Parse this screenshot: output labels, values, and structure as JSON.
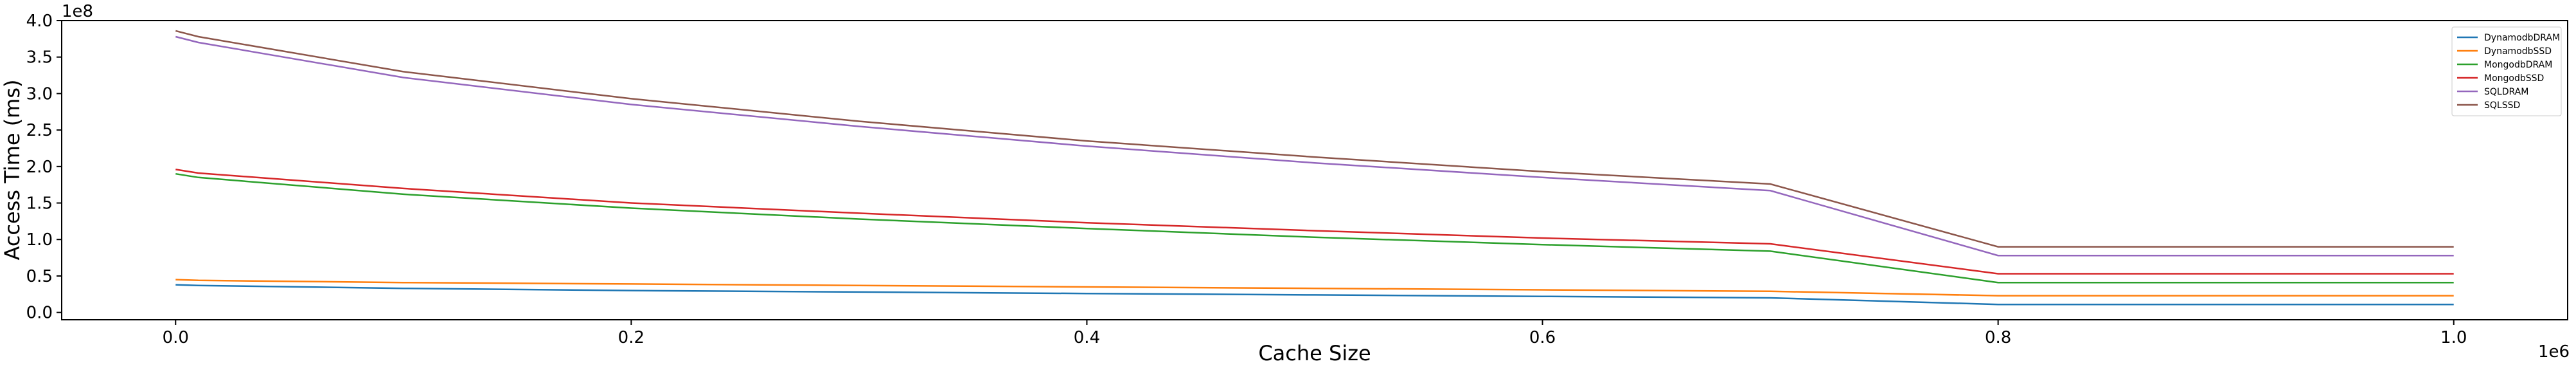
{
  "chart_data": {
    "type": "line",
    "title": "",
    "xlabel": "Cache Size",
    "ylabel": "Access Time (ms)",
    "x_offset_label": "1e6",
    "y_offset_label": "1e8",
    "xlim": [
      -0.05,
      1.05
    ],
    "ylim": [
      -0.1,
      4.0
    ],
    "xticks": [
      0.0,
      0.2,
      0.4,
      0.6,
      0.8,
      1.0
    ],
    "xtick_labels": [
      "0.0",
      "0.2",
      "0.4",
      "0.6",
      "0.8",
      "1.0"
    ],
    "yticks": [
      0.0,
      0.5,
      1.0,
      1.5,
      2.0,
      2.5,
      3.0,
      3.5,
      4.0
    ],
    "ytick_labels": [
      "0.0",
      "0.5",
      "1.0",
      "1.5",
      "2.0",
      "2.5",
      "3.0",
      "3.5",
      "4.0"
    ],
    "x": [
      0.0,
      0.01,
      0.1,
      0.2,
      0.3,
      0.4,
      0.5,
      0.6,
      0.7,
      0.8,
      0.9,
      1.0
    ],
    "series": [
      {
        "name": "DynamodbDRAM",
        "color": "#1f77b4",
        "values": [
          0.38,
          0.37,
          0.33,
          0.3,
          0.28,
          0.26,
          0.24,
          0.22,
          0.2,
          0.11,
          0.11,
          0.11
        ]
      },
      {
        "name": "DynamodbSSD",
        "color": "#ff7f0e",
        "values": [
          0.45,
          0.44,
          0.41,
          0.39,
          0.37,
          0.35,
          0.33,
          0.31,
          0.29,
          0.23,
          0.23,
          0.23
        ]
      },
      {
        "name": "MongodbDRAM",
        "color": "#2ca02c",
        "values": [
          1.9,
          1.85,
          1.62,
          1.43,
          1.28,
          1.15,
          1.03,
          0.93,
          0.84,
          0.41,
          0.41,
          0.41
        ]
      },
      {
        "name": "MongodbSSD",
        "color": "#d62728",
        "values": [
          1.96,
          1.91,
          1.7,
          1.5,
          1.36,
          1.23,
          1.12,
          1.02,
          0.94,
          0.53,
          0.53,
          0.53
        ]
      },
      {
        "name": "SQLDRAM",
        "color": "#9467bd",
        "values": [
          3.78,
          3.7,
          3.22,
          2.85,
          2.55,
          2.28,
          2.05,
          1.85,
          1.67,
          0.78,
          0.78,
          0.78
        ]
      },
      {
        "name": "SQLSSD",
        "color": "#8c564b",
        "values": [
          3.86,
          3.78,
          3.3,
          2.93,
          2.62,
          2.35,
          2.13,
          1.93,
          1.76,
          0.9,
          0.9,
          0.9
        ]
      }
    ],
    "grid": false,
    "legend_position": "top-right"
  }
}
